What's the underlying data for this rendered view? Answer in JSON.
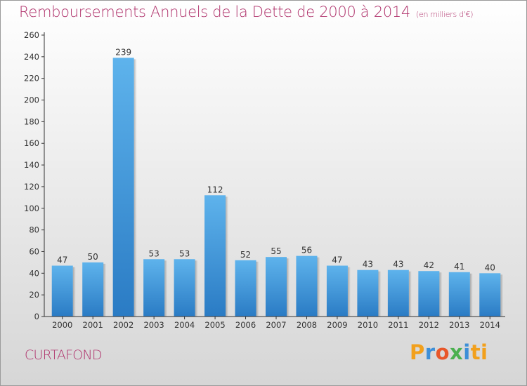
{
  "title": "Remboursements Annuels de la Dette de 2000 à 2014",
  "unit": "(en milliers d'€)",
  "city": "CURTAFOND",
  "brand": {
    "text": "Proxiti",
    "letters": [
      "P",
      "r",
      "o",
      "x",
      "i",
      "ti"
    ],
    "colors": [
      "#f2a01c",
      "#3d8fd8",
      "#e8572a",
      "#4bb04f",
      "#3d8fd8",
      "#f2a01c"
    ]
  },
  "colors": {
    "title": "#b0336c",
    "bar_top": "#5eb3ec",
    "bar_bottom": "#2a7bc4"
  },
  "chart_data": {
    "type": "bar",
    "categories": [
      "2000",
      "2001",
      "2002",
      "2003",
      "2004",
      "2005",
      "2006",
      "2007",
      "2008",
      "2009",
      "2010",
      "2011",
      "2012",
      "2013",
      "2014"
    ],
    "values": [
      47,
      50,
      239,
      53,
      53,
      112,
      52,
      55,
      56,
      47,
      43,
      43,
      42,
      41,
      40
    ],
    "ylim": [
      0,
      260
    ],
    "yticks": [
      0,
      20,
      40,
      60,
      80,
      100,
      120,
      140,
      160,
      180,
      200,
      220,
      240,
      260
    ],
    "grid": false,
    "xlabel": "",
    "ylabel": ""
  }
}
